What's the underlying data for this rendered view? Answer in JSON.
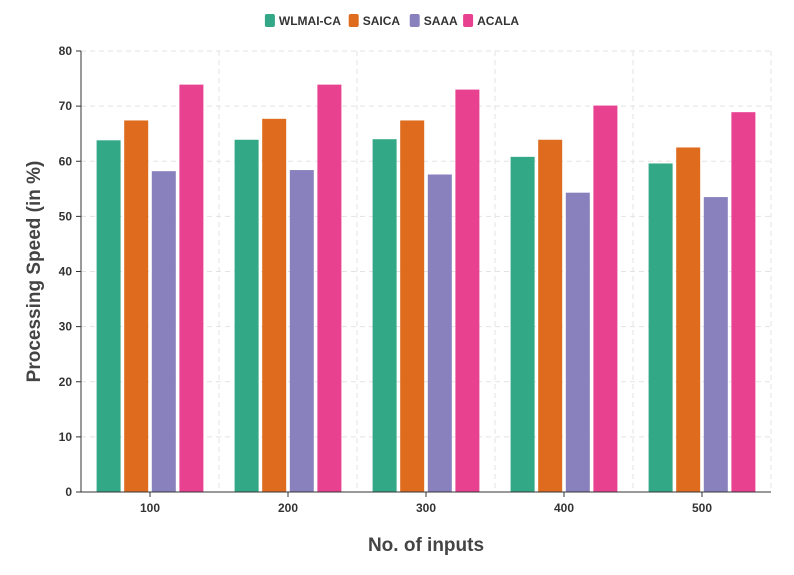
{
  "chart_data": {
    "type": "bar",
    "categories": [
      "100",
      "200",
      "300",
      "400",
      "500"
    ],
    "series": [
      {
        "name": "WLMAI-CA",
        "color": "#33a886",
        "values": [
          63.8,
          63.9,
          64.0,
          60.8,
          59.6
        ]
      },
      {
        "name": "SAICA",
        "color": "#de6b1e",
        "values": [
          67.4,
          67.7,
          67.4,
          63.9,
          62.5
        ]
      },
      {
        "name": "SAAA",
        "color": "#8981bd",
        "values": [
          58.2,
          58.4,
          57.6,
          54.3,
          53.5
        ]
      },
      {
        "name": "ACALA",
        "color": "#e74190",
        "values": [
          73.9,
          73.9,
          73.0,
          70.1,
          68.9
        ]
      }
    ],
    "xlabel": "No. of inputs",
    "ylabel": "Processing Speed (in %)",
    "ylim": [
      0,
      80
    ],
    "yticks": [
      "0",
      "10",
      "20",
      "30",
      "40",
      "50",
      "60",
      "70",
      "80"
    ],
    "grid": true,
    "legend_position": "top-center"
  }
}
